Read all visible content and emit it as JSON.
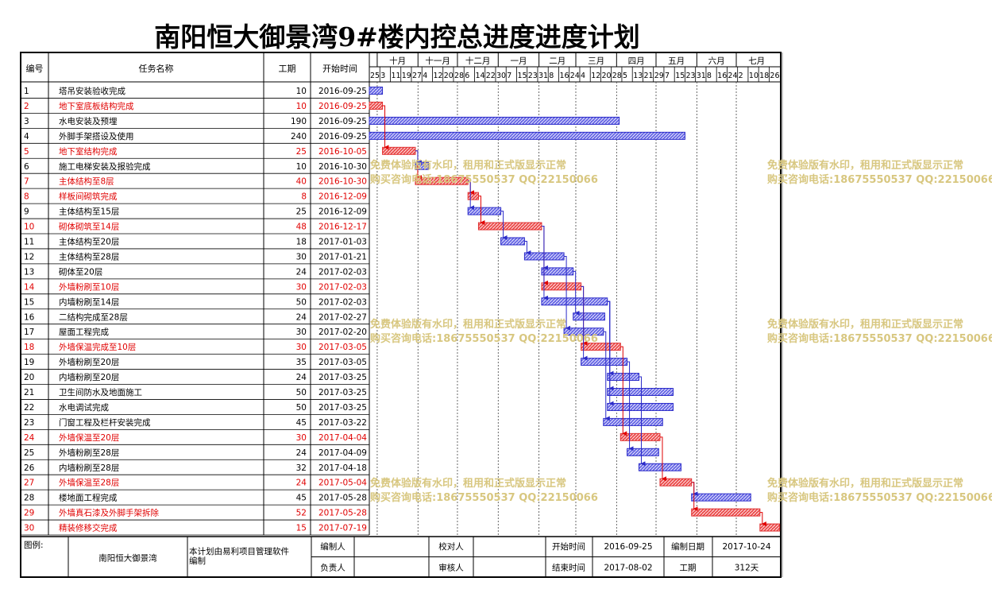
{
  "title": "南阳恒大御景湾9#楼内控总进度进度计划",
  "headers": {
    "id": "编号",
    "name": "任务名称",
    "duration": "工期",
    "start": "开始时间"
  },
  "months": [
    "十月",
    "十一月",
    "十二月",
    "一月",
    "二月",
    "三月",
    "四月",
    "五月",
    "六月",
    "七月"
  ],
  "day_ticks": [
    "25",
    "3",
    "11",
    "19",
    "27",
    "4",
    "12",
    "20",
    "28",
    "6",
    "14",
    "22",
    "30",
    "7",
    "15",
    "23",
    "31",
    "8",
    "16",
    "24",
    "4",
    "12",
    "20",
    "28",
    "5",
    "13",
    "21",
    "29",
    "7",
    "15",
    "23",
    "31",
    "8",
    "16",
    "24",
    "2",
    "10",
    "18",
    "26"
  ],
  "colors": {
    "normal_text": "#000000",
    "critical_text": "#e00000",
    "normal_bar": "#2a2ac8",
    "critical_bar": "#e03030",
    "watermark": "#d8c780"
  },
  "chart_data": {
    "type": "gantt",
    "title": "南阳恒大御景湾9#楼内控总进度进度计划",
    "x_range": [
      "2016-09-25",
      "2017-07-31"
    ],
    "tasks": [
      {
        "id": "1",
        "name": "塔吊安装验收完成",
        "duration": "10",
        "start": "2016-09-25",
        "critical": false,
        "bar": [
          0,
          10
        ]
      },
      {
        "id": "2",
        "name": "地下室底板结构完成",
        "duration": "10",
        "start": "2016-09-25",
        "critical": true,
        "bar": [
          0,
          10
        ]
      },
      {
        "id": "3",
        "name": "水电安装及预埋",
        "duration": "190",
        "start": "2016-09-25",
        "critical": false,
        "bar": [
          0,
          190
        ]
      },
      {
        "id": "4",
        "name": "外脚手架搭设及使用",
        "duration": "240",
        "start": "2016-09-25",
        "critical": false,
        "bar": [
          0,
          240
        ]
      },
      {
        "id": "5",
        "name": "地下室结构完成",
        "duration": "25",
        "start": "2016-10-05",
        "critical": true,
        "bar": [
          10,
          35
        ]
      },
      {
        "id": "6",
        "name": "施工电梯安装及报验完成",
        "duration": "10",
        "start": "2016-10-30",
        "critical": false,
        "bar": [
          35,
          45
        ]
      },
      {
        "id": "7",
        "name": "主体结构至8层",
        "duration": "40",
        "start": "2016-10-30",
        "critical": true,
        "bar": [
          35,
          75
        ]
      },
      {
        "id": "8",
        "name": "样板间砌筑完成",
        "duration": "8",
        "start": "2016-12-09",
        "critical": true,
        "bar": [
          75,
          83
        ]
      },
      {
        "id": "9",
        "name": "主体结构至15层",
        "duration": "25",
        "start": "2016-12-09",
        "critical": false,
        "bar": [
          75,
          100
        ]
      },
      {
        "id": "10",
        "name": "砌体砌筑至14层",
        "duration": "48",
        "start": "2016-12-17",
        "critical": true,
        "bar": [
          83,
          131
        ]
      },
      {
        "id": "11",
        "name": "主体结构至20层",
        "duration": "18",
        "start": "2017-01-03",
        "critical": false,
        "bar": [
          100,
          118
        ]
      },
      {
        "id": "12",
        "name": "主体结构至28层",
        "duration": "30",
        "start": "2017-01-21",
        "critical": false,
        "bar": [
          118,
          148
        ]
      },
      {
        "id": "13",
        "name": "砌体至20层",
        "duration": "24",
        "start": "2017-02-03",
        "critical": false,
        "bar": [
          131,
          155
        ]
      },
      {
        "id": "14",
        "name": "外墙粉刷至10层",
        "duration": "30",
        "start": "2017-02-03",
        "critical": true,
        "bar": [
          131,
          161
        ]
      },
      {
        "id": "15",
        "name": "内墙粉刷至14层",
        "duration": "50",
        "start": "2017-02-03",
        "critical": false,
        "bar": [
          131,
          181
        ]
      },
      {
        "id": "16",
        "name": "二结构完成至28层",
        "duration": "24",
        "start": "2017-02-27",
        "critical": false,
        "bar": [
          155,
          179
        ]
      },
      {
        "id": "17",
        "name": "屋面工程完成",
        "duration": "30",
        "start": "2017-02-20",
        "critical": false,
        "bar": [
          148,
          178
        ]
      },
      {
        "id": "18",
        "name": "外墙保温完成至10层",
        "duration": "30",
        "start": "2017-03-05",
        "critical": true,
        "bar": [
          161,
          191
        ]
      },
      {
        "id": "19",
        "name": "外墙粉刷至20层",
        "duration": "35",
        "start": "2017-03-05",
        "critical": false,
        "bar": [
          161,
          196
        ]
      },
      {
        "id": "20",
        "name": "内墙粉刷至20层",
        "duration": "24",
        "start": "2017-03-25",
        "critical": false,
        "bar": [
          181,
          205
        ]
      },
      {
        "id": "21",
        "name": "卫生间防水及地面施工",
        "duration": "50",
        "start": "2017-03-25",
        "critical": false,
        "bar": [
          181,
          231
        ]
      },
      {
        "id": "22",
        "name": "水电调试完成",
        "duration": "50",
        "start": "2017-03-25",
        "critical": false,
        "bar": [
          181,
          231
        ]
      },
      {
        "id": "23",
        "name": "门窗工程及栏杆安装完成",
        "duration": "45",
        "start": "2017-03-22",
        "critical": false,
        "bar": [
          178,
          223
        ]
      },
      {
        "id": "24",
        "name": "外墙保温至20层",
        "duration": "30",
        "start": "2017-04-04",
        "critical": true,
        "bar": [
          191,
          221
        ]
      },
      {
        "id": "25",
        "name": "外墙粉刷至28层",
        "duration": "24",
        "start": "2017-04-09",
        "critical": false,
        "bar": [
          196,
          220
        ]
      },
      {
        "id": "26",
        "name": "内墙粉刷至28层",
        "duration": "32",
        "start": "2017-04-18",
        "critical": false,
        "bar": [
          205,
          237
        ]
      },
      {
        "id": "27",
        "name": "外墙保温至28层",
        "duration": "24",
        "start": "2017-05-04",
        "critical": true,
        "bar": [
          221,
          245
        ]
      },
      {
        "id": "28",
        "name": "楼地面工程完成",
        "duration": "45",
        "start": "2017-05-28",
        "critical": false,
        "bar": [
          245,
          290
        ]
      },
      {
        "id": "29",
        "name": "外墙真石漆及外脚手架拆除",
        "duration": "52",
        "start": "2017-05-28",
        "critical": true,
        "bar": [
          245,
          297
        ]
      },
      {
        "id": "30",
        "name": "精装修移交完成",
        "duration": "15",
        "start": "2017-07-19",
        "critical": true,
        "bar": [
          297,
          312
        ]
      }
    ]
  },
  "footer": {
    "legend_label": "图例:",
    "project": "南阳恒大御景湾",
    "note": "本计划由易利项目管理软件编制",
    "compiler_label": "编制人",
    "checker_label": "校对人",
    "manager_label": "负责人",
    "reviewer_label": "审核人",
    "start_label": "开始时间",
    "start_value": "2016-09-25",
    "end_label": "结束时间",
    "end_value": "2017-08-02",
    "date_label": "编制日期",
    "date_value": "2017-10-24",
    "duration_label": "工期",
    "duration_value": "312天"
  },
  "watermark": {
    "line1": "免费体验版有水印，租用和正式版显示正常",
    "line2": "购买咨询电话:18675550537 QQ:22150066"
  }
}
